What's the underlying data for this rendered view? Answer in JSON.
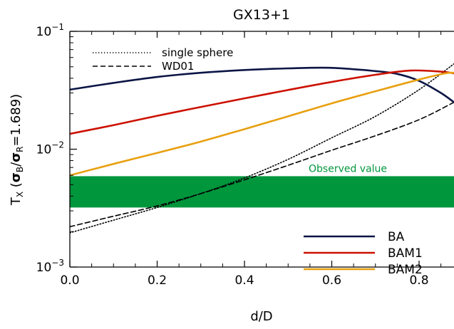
{
  "chart_data": {
    "type": "line",
    "title": "GX13+1",
    "xlabel": "d/D",
    "ylabel": {
      "prefix": "T",
      "prefix_sub": "X",
      "open": " (",
      "sigma1": "σ",
      "sigma1_sub": "B",
      "slash": "/",
      "sigma2": "σ",
      "sigma2_sub": "R",
      "value": "=1.689)"
    },
    "xlim": [
      0.0,
      0.88
    ],
    "ylim": [
      0.001,
      0.1
    ],
    "yscale": "log",
    "x_ticks": [
      "0.0",
      "0.2",
      "0.4",
      "0.6",
      "0.8"
    ],
    "x_tick_values": [
      0.0,
      0.2,
      0.4,
      0.6,
      0.8
    ],
    "y_ticks": [
      {
        "value": 0.1,
        "base": "10",
        "exp": "−1"
      },
      {
        "value": 0.01,
        "base": "10",
        "exp": "−2"
      },
      {
        "value": 0.001,
        "base": "10",
        "exp": "−3"
      }
    ],
    "band": {
      "label": "Observed value",
      "y_low": 0.0032,
      "y_high": 0.0059,
      "color": "#00963c"
    },
    "series": [
      {
        "name": "single sphere",
        "style": "dotted",
        "color": "#000000",
        "x": [
          0.0,
          0.1,
          0.2,
          0.3,
          0.4,
          0.5,
          0.6,
          0.7,
          0.8,
          0.88
        ],
        "y": [
          0.00195,
          0.0025,
          0.0032,
          0.0042,
          0.0057,
          0.0082,
          0.0125,
          0.019,
          0.032,
          0.053
        ]
      },
      {
        "name": "WD01",
        "style": "dashed",
        "color": "#000000",
        "x": [
          0.0,
          0.1,
          0.2,
          0.3,
          0.4,
          0.5,
          0.6,
          0.7,
          0.8,
          0.88
        ],
        "y": [
          0.0022,
          0.0027,
          0.0033,
          0.0042,
          0.0055,
          0.0073,
          0.0098,
          0.013,
          0.0178,
          0.025
        ]
      },
      {
        "name": "BA",
        "style": "solid",
        "color": "#0b1545",
        "x": [
          0.0,
          0.1,
          0.2,
          0.3,
          0.4,
          0.5,
          0.6,
          0.7,
          0.75,
          0.8,
          0.85,
          0.88
        ],
        "y": [
          0.032,
          0.0365,
          0.041,
          0.0445,
          0.047,
          0.0485,
          0.049,
          0.046,
          0.0435,
          0.038,
          0.03,
          0.025
        ]
      },
      {
        "name": "BAM1",
        "style": "solid",
        "color": "#cc1100",
        "x": [
          0.0,
          0.1,
          0.2,
          0.3,
          0.4,
          0.5,
          0.6,
          0.7,
          0.78,
          0.85,
          0.88
        ],
        "y": [
          0.0135,
          0.016,
          0.0192,
          0.0228,
          0.027,
          0.0318,
          0.0372,
          0.0428,
          0.0465,
          0.0455,
          0.044
        ]
      },
      {
        "name": "BAM2",
        "style": "solid",
        "color": "#e8a010",
        "x": [
          0.0,
          0.1,
          0.2,
          0.3,
          0.4,
          0.5,
          0.6,
          0.7,
          0.8,
          0.86,
          0.88
        ],
        "y": [
          0.006,
          0.0075,
          0.0093,
          0.0116,
          0.0148,
          0.019,
          0.0245,
          0.031,
          0.039,
          0.044,
          0.0445
        ]
      }
    ],
    "legend_top": [
      "single sphere",
      "WD01"
    ],
    "legend_bottom": [
      "BA",
      "BAM1",
      "BAM2"
    ]
  }
}
